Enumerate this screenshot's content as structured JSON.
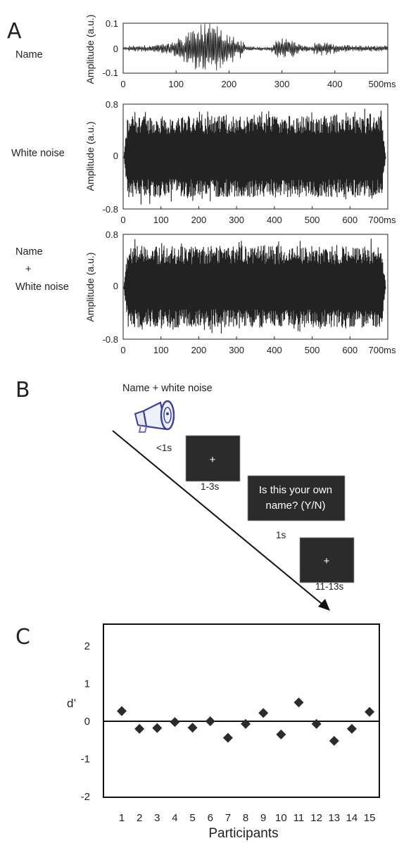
{
  "panels": {
    "A": {
      "letter": "A",
      "ylabel": "Amplitude (a.u.)",
      "rows": [
        {
          "label": "Name",
          "yticks": [
            "0.1",
            "0",
            "-0.1"
          ],
          "xticks": [
            "0",
            "100",
            "200",
            "300",
            "400",
            "500ms"
          ]
        },
        {
          "label": "White noise",
          "yticks": [
            "0.8",
            "0",
            "-0.8"
          ],
          "xticks": [
            "0",
            "100",
            "200",
            "300",
            "400",
            "500",
            "600",
            "700ms"
          ]
        },
        {
          "label_lines": [
            "Name",
            "+",
            "White noise"
          ],
          "yticks": [
            "0.8",
            "0",
            "-0.8"
          ],
          "xticks": [
            "0",
            "100",
            "200",
            "300",
            "400",
            "500",
            "600",
            "700ms"
          ]
        }
      ]
    },
    "B": {
      "letter": "B",
      "stimulus_label": "Name + white noise",
      "icon": "speaker-icon",
      "timings": [
        "<1s",
        "1-3s",
        "1s",
        "11-13s"
      ],
      "fixation_symbol": "+",
      "question_lines": [
        "Is this your own",
        "name? (Y/N)"
      ]
    },
    "C": {
      "letter": "C",
      "ylabel": "d’",
      "xlabel": "Participants"
    }
  },
  "chart_data": [
    {
      "type": "line",
      "title": "",
      "series": [
        {
          "name": "",
          "description_values": "waveform"
        }
      ],
      "xlim": [
        0,
        500
      ],
      "ylim": [
        -0.1,
        0.1
      ],
      "xticks": [
        0,
        100,
        200,
        300,
        400,
        500
      ],
      "yticks": [
        -0.1,
        0,
        0.1
      ],
      "xlabel": "",
      "ylabel": "Amplitude (a.u.)"
    },
    {
      "type": "line",
      "xlim": [
        0,
        700
      ],
      "ylim": [
        -0.8,
        0.8
      ],
      "xticks": [
        0,
        100,
        200,
        300,
        400,
        500,
        600,
        700
      ],
      "yticks": [
        -0.8,
        0,
        0.8
      ],
      "xlabel": "",
      "ylabel": "Amplitude (a.u.)"
    },
    {
      "type": "line",
      "xlim": [
        0,
        700
      ],
      "ylim": [
        -0.8,
        0.8
      ],
      "xticks": [
        0,
        100,
        200,
        300,
        400,
        500,
        600,
        700
      ],
      "yticks": [
        -0.8,
        0,
        0.8
      ],
      "xlabel": "",
      "ylabel": "Amplitude (a.u.)"
    },
    {
      "type": "scatter",
      "x": [
        1,
        2,
        3,
        4,
        5,
        6,
        7,
        8,
        9,
        10,
        11,
        12,
        13,
        14,
        15
      ],
      "y": [
        0.27,
        -0.2,
        -0.18,
        -0.02,
        -0.17,
        0.0,
        -0.44,
        -0.07,
        0.22,
        -0.35,
        0.5,
        -0.07,
        -0.52,
        -0.2,
        0.25
      ],
      "xticks": [
        1,
        2,
        3,
        4,
        5,
        6,
        7,
        8,
        9,
        10,
        11,
        12,
        13,
        14,
        15
      ],
      "yticks": [
        -2,
        -1,
        0,
        1,
        2
      ],
      "ylim": [
        -2,
        2
      ],
      "xlabel": "Participants",
      "ylabel": "d’",
      "marker": "diamond",
      "reference_line_y": 0
    }
  ],
  "colors": {
    "ink": "#222222",
    "dark_box": "#2b2b2b",
    "icon_blue": "#3a3fa0"
  }
}
